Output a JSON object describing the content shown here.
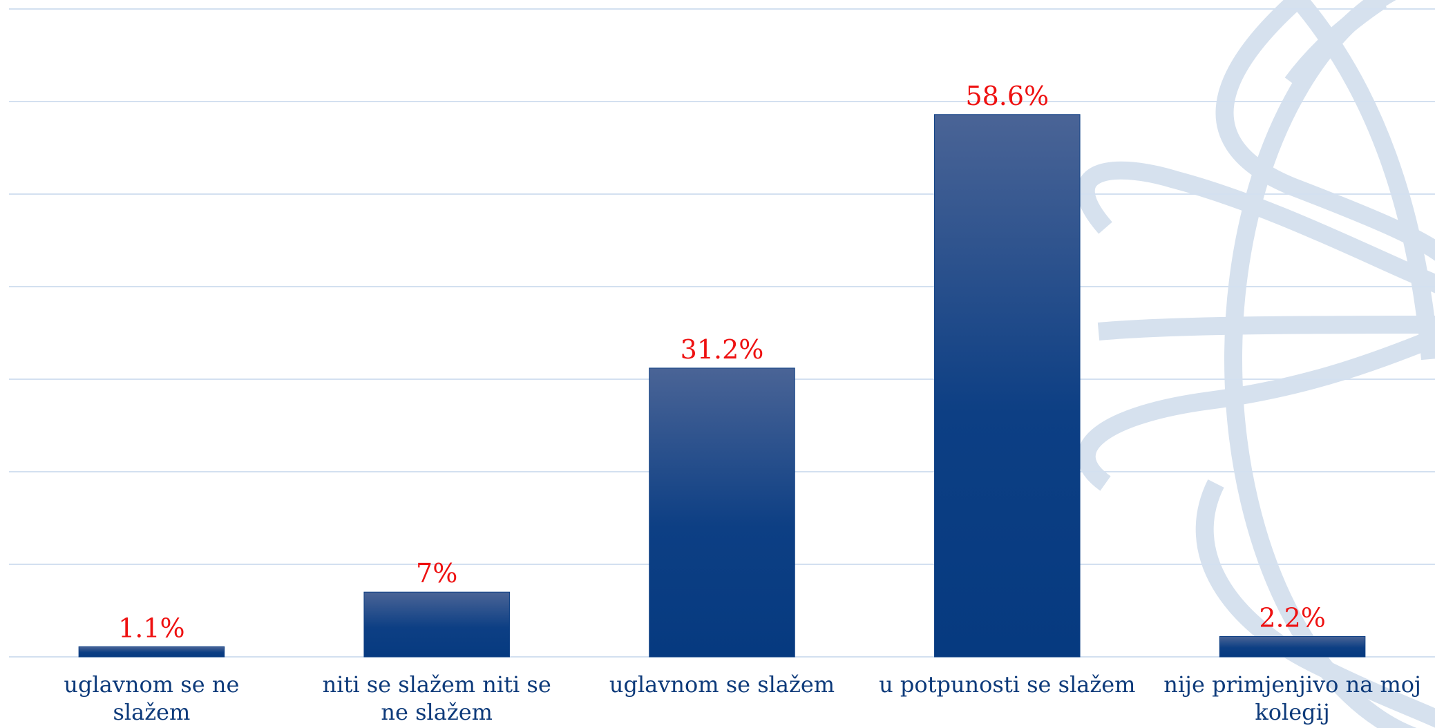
{
  "chart_data": {
    "type": "bar",
    "categories": [
      "uglavnom se ne slažem",
      "niti se slažem niti se ne slažem",
      "uglavnom se slažem",
      "u potpunosti se slažem",
      "nije primjenjivo na moj kolegij"
    ],
    "values": [
      1.1,
      7,
      31.2,
      58.6,
      2.2
    ],
    "value_labels": [
      "1.1%",
      "7%",
      "31.2%",
      "58.6%",
      "2.2%"
    ],
    "color": "#0d3f84",
    "label_color": "#ee1111",
    "ylim": [
      0,
      70
    ],
    "yticks": [
      0,
      10,
      20,
      30,
      40,
      50,
      60,
      70
    ],
    "grid": true
  }
}
